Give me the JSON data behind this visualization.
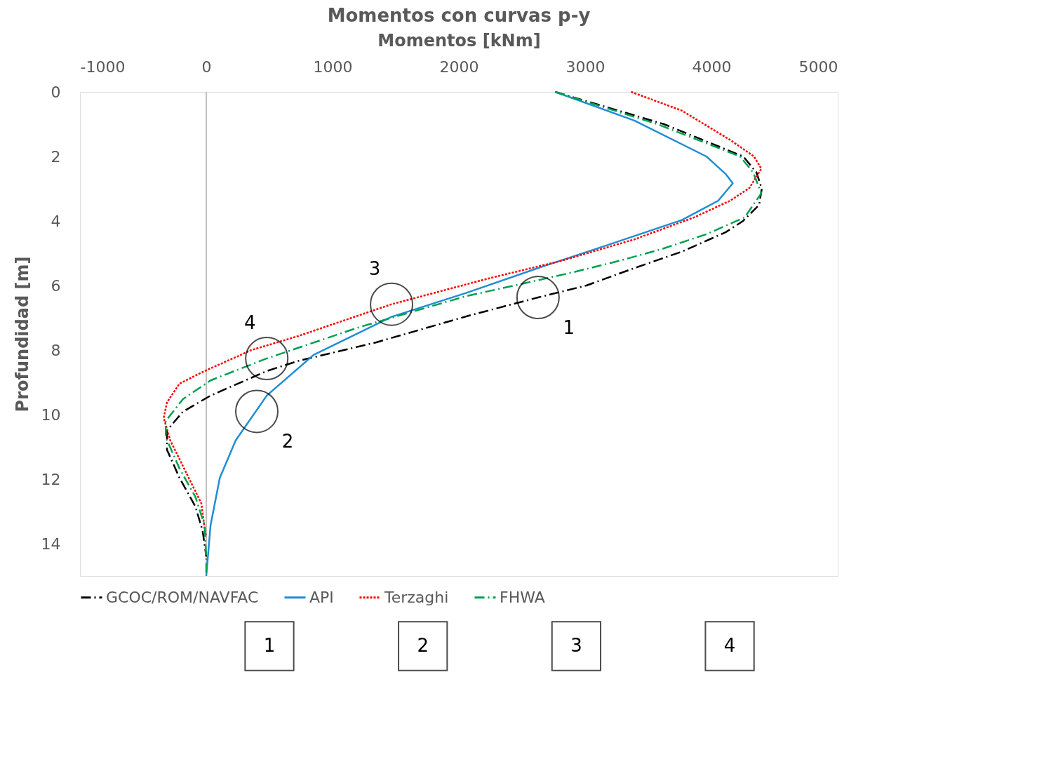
{
  "chart_data": {
    "type": "line",
    "orientation": "horizontal",
    "title": "Momentos con curvas p-y",
    "xlabel": "Momentos [kNm]",
    "ylabel": "Profundidad [m]",
    "xlim": [
      -1000,
      5000
    ],
    "xticks": [
      -1000,
      0,
      1000,
      2000,
      3000,
      4000,
      5000
    ],
    "ylim": [
      15,
      0
    ],
    "yticks": [
      0,
      2,
      4,
      6,
      8,
      10,
      12,
      14
    ],
    "grid": false,
    "legend": "bottom",
    "marker": "none",
    "ref_lines": [
      {
        "axis": "x",
        "value": 0,
        "color": "#bfbfbf"
      }
    ],
    "series": [
      {
        "name": "GCOC/ROM/NAVFAC",
        "color": "#000000",
        "line_style": "dashed",
        "values": [
          2763,
          3625,
          4252,
          4357,
          4399,
          4378,
          4250,
          4112,
          3766,
          3390,
          3009,
          2627,
          2083,
          1347,
          725,
          479,
          34,
          -185,
          -311,
          -311,
          -212,
          -86,
          -29,
          0
        ],
        "x": [
          0,
          1,
          2,
          2.5,
          3,
          3.5,
          4,
          4.35,
          4.95,
          5.46,
          6,
          6.37,
          6.93,
          7.76,
          8.34,
          8.65,
          9.41,
          9.91,
          10.49,
          11.09,
          11.96,
          12.85,
          13.6,
          14.4
        ]
      },
      {
        "name": "API",
        "color": "#1f8dd6",
        "line_style": "solid",
        "values": [
          2763,
          3390,
          3960,
          4112,
          4169,
          4054,
          3766,
          3197,
          2627,
          2057,
          1467,
          850,
          479,
          233,
          107,
          34,
          0
        ],
        "x": [
          0,
          0.89,
          2,
          2.54,
          2.83,
          3.37,
          3.97,
          4.72,
          5.46,
          6.23,
          6.97,
          8.15,
          9.41,
          10.8,
          11.96,
          13.43,
          15
        ]
      },
      {
        "name": "Terzaghi",
        "color": "#ff0000",
        "line_style": "dotted",
        "values": [
          3364,
          3766,
          4149,
          4337,
          4395,
          4300,
          4149,
          3862,
          3390,
          2816,
          2246,
          1467,
          725,
          358,
          -13,
          -212,
          -311,
          -337,
          -285,
          -139,
          -39,
          -13,
          0
        ],
        "x": [
          0,
          0.58,
          1.49,
          2,
          2.38,
          2.98,
          3.37,
          3.89,
          4.57,
          5.23,
          5.77,
          6.58,
          7.57,
          8,
          8.65,
          9.04,
          9.62,
          10.1,
          10.8,
          11.96,
          12.75,
          13.53,
          13.8
        ]
      },
      {
        "name": "FHWA",
        "color": "#00a050",
        "line_style": "dashed",
        "values": [
          2763,
          3573,
          4227,
          4331,
          4395,
          4263,
          3960,
          3615,
          3275,
          2914,
          2532,
          2057,
          1220,
          479,
          34,
          -185,
          -321,
          -321,
          -212,
          -86,
          -13,
          0,
          0
        ],
        "x": [
          0,
          1,
          2,
          2.5,
          3.14,
          3.89,
          4.41,
          4.86,
          5.23,
          5.58,
          5.92,
          6.33,
          7.28,
          8.26,
          8.94,
          9.52,
          10.2,
          10.7,
          11.67,
          12.55,
          13.43,
          14.5,
          15
        ]
      }
    ],
    "annotations": [
      {
        "text": "1",
        "x": 2627,
        "y": 6.37
      },
      {
        "text": "2",
        "x": 400,
        "y": 9.9
      },
      {
        "text": "3",
        "x": 1467,
        "y": 6.58
      },
      {
        "text": "4",
        "x": 479,
        "y": 8.26
      },
      "1",
      "2",
      "3",
      "4"
    ]
  }
}
